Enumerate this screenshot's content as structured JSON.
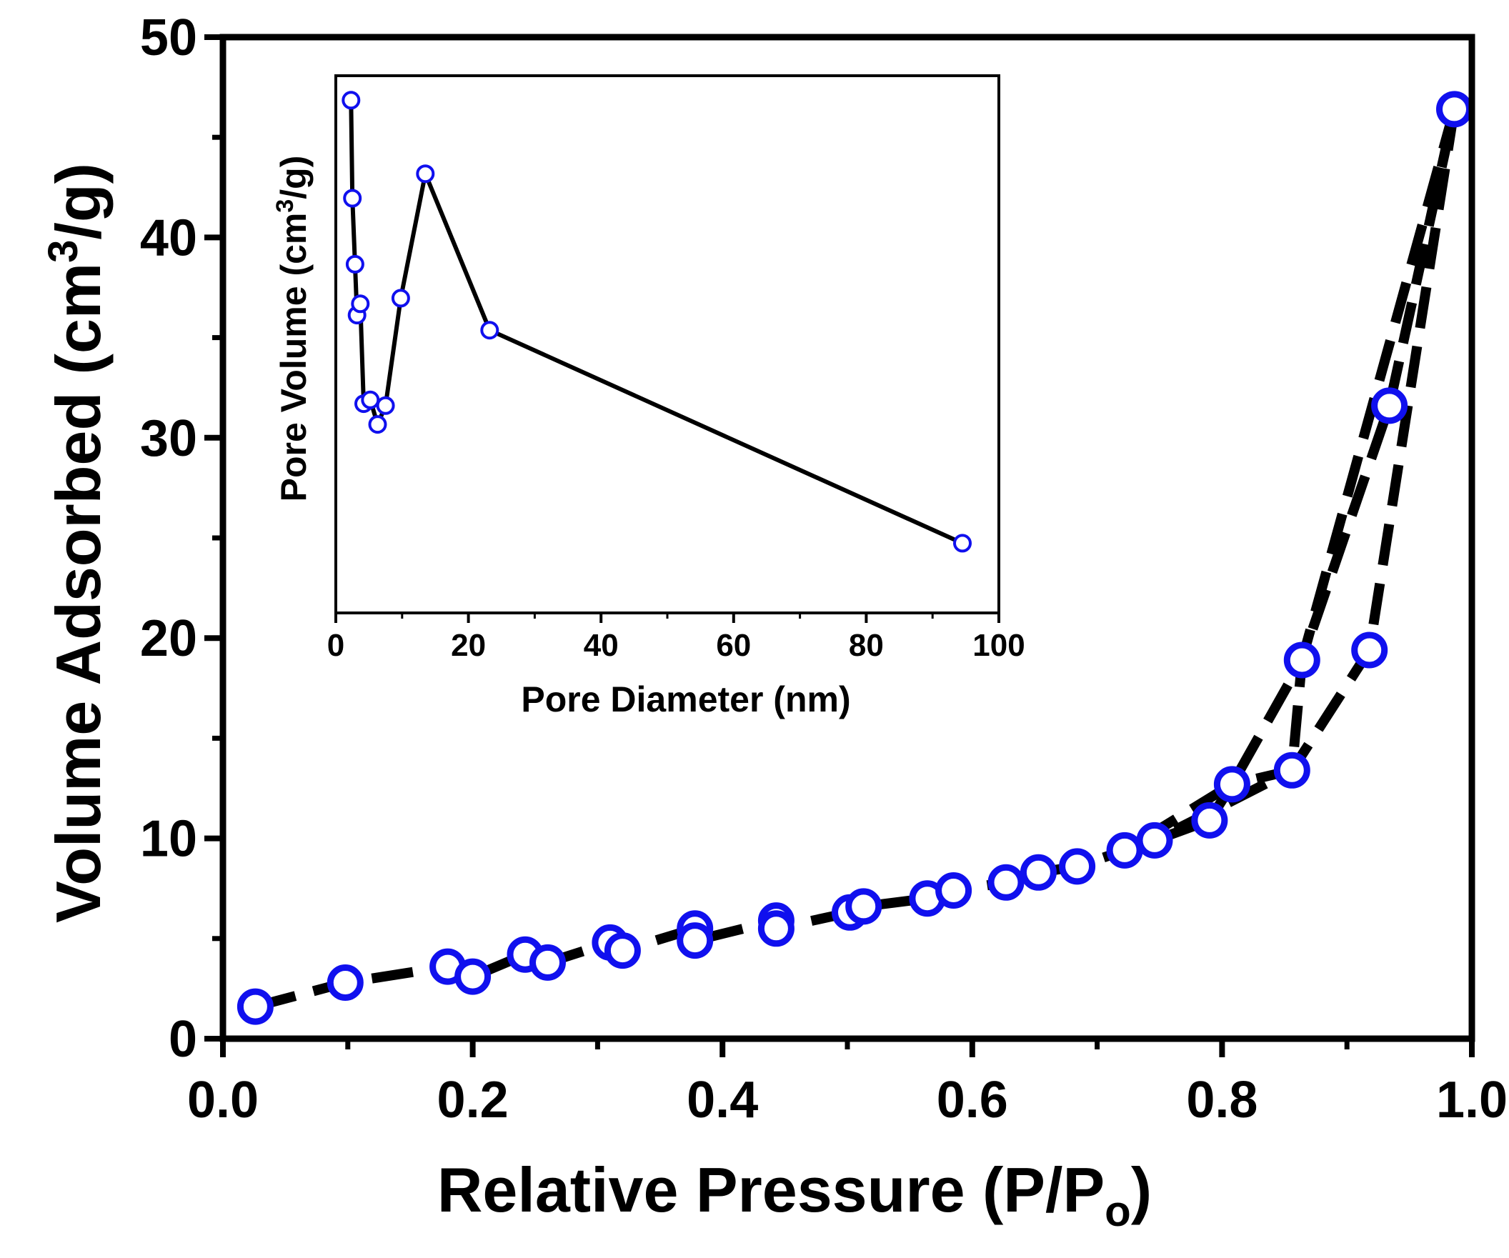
{
  "chart_data": [
    {
      "type": "scatter",
      "xlabel": "Relative Pressure (P/P",
      "xlabel_sub": "o",
      "xlabel_end": ")",
      "ylabel": "Volume Adsorbed (cm",
      "ylabel_sup": "3",
      "ylabel_end": "/g)",
      "xlim": [
        0.0,
        1.0
      ],
      "ylim": [
        0,
        50
      ],
      "xticks": [
        "0.0",
        "0.2",
        "0.4",
        "0.6",
        "0.8",
        "1.0"
      ],
      "yticks": [
        "0",
        "10",
        "20",
        "30",
        "40",
        "50"
      ],
      "line_style": "dashed",
      "grid": false,
      "series": [
        {
          "values": [
            [
              0.026,
              1.6
            ],
            [
              0.098,
              2.8
            ],
            [
              0.18,
              3.6
            ],
            [
              0.2,
              3.1
            ],
            [
              0.242,
              4.2
            ],
            [
              0.26,
              3.8
            ],
            [
              0.31,
              4.8
            ],
            [
              0.32,
              4.4
            ],
            [
              0.378,
              5.5
            ],
            [
              0.378,
              4.9
            ],
            [
              0.443,
              5.9
            ],
            [
              0.443,
              5.5
            ],
            [
              0.502,
              6.3
            ],
            [
              0.513,
              6.6
            ],
            [
              0.564,
              7.0
            ],
            [
              0.585,
              7.4
            ],
            [
              0.627,
              7.8
            ],
            [
              0.653,
              8.3
            ],
            [
              0.684,
              8.6
            ],
            [
              0.722,
              9.4
            ],
            [
              0.746,
              9.9
            ],
            [
              0.79,
              10.9
            ],
            [
              0.808,
              12.7
            ],
            [
              0.856,
              13.4
            ],
            [
              0.864,
              18.9
            ],
            [
              0.918,
              19.4
            ],
            [
              0.934,
              31.6
            ],
            [
              0.986,
              46.4
            ]
          ]
        }
      ],
      "marker_color": "#1010ee",
      "line_color": "#000000"
    },
    {
      "type": "line",
      "role": "inset",
      "xlabel": "Pore Diameter (nm)",
      "ylabel": "Pore Volume (cm",
      "ylabel_sup": "3",
      "ylabel_end": "/g)",
      "xlim": [
        0,
        100
      ],
      "ylim": [
        20,
        48.5
      ],
      "xticks": [
        "0",
        "20",
        "40",
        "60",
        "80",
        "100"
      ],
      "yticks": [],
      "grid": false,
      "series": [
        {
          "values": [
            [
              2.3,
              47.2
            ],
            [
              2.5,
              42.0
            ],
            [
              2.9,
              38.5
            ],
            [
              3.2,
              35.8
            ],
            [
              3.7,
              36.4
            ],
            [
              4.2,
              31.1
            ],
            [
              5.2,
              31.3
            ],
            [
              6.3,
              30.0
            ],
            [
              7.5,
              31.0
            ],
            [
              9.8,
              36.7
            ],
            [
              13.5,
              43.3
            ],
            [
              23.2,
              35.0
            ],
            [
              94.5,
              23.7
            ]
          ]
        }
      ],
      "marker_color": "#1010ee",
      "line_color": "#000000"
    }
  ]
}
